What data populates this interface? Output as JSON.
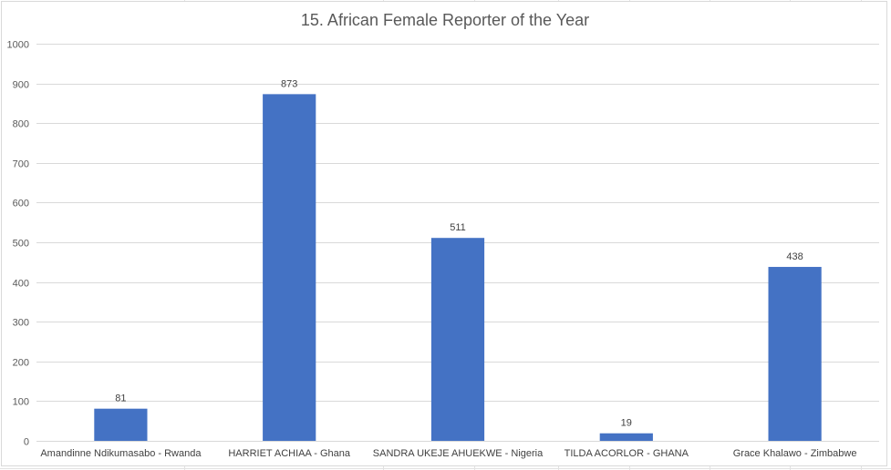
{
  "chart_data": {
    "type": "bar",
    "title": "15. African Female Reporter of the Year",
    "xlabel": "",
    "ylabel": "",
    "categories": [
      "Amandinne Ndikumasabo - Rwanda",
      "HARRIET ACHIAA - Ghana",
      "SANDRA UKEJE AHUEKWE - Nigeria",
      "TILDA ACORLOR - GHANA",
      "Grace Khalawo - Zimbabwe"
    ],
    "values": [
      81,
      873,
      511,
      19,
      438
    ],
    "data_labels": [
      "81",
      "873",
      "511",
      "19",
      "438"
    ],
    "ylim": [
      0,
      1000
    ],
    "yticks": [
      0,
      100,
      200,
      300,
      400,
      500,
      600,
      700,
      800,
      900,
      1000
    ],
    "grid": true,
    "legend": "none",
    "bar_color": "#4472c4",
    "gridline_color": "#d9d9d9"
  }
}
